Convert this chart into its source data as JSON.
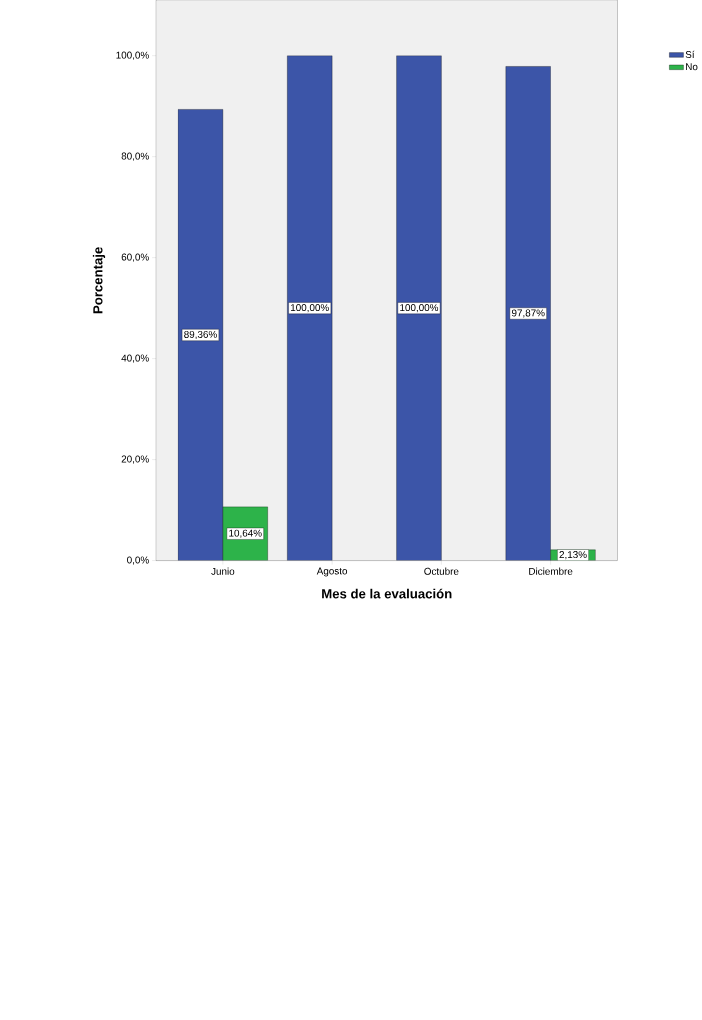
{
  "chart_data": {
    "type": "bar",
    "xlabel": "Mes de la evaluación",
    "ylabel": "Porcentaje",
    "categories": [
      "Junio",
      "Agosto",
      "Octubre",
      "Diciembre"
    ],
    "series": [
      {
        "name": "Sí",
        "color": "#3c55a8",
        "values": [
          89.36,
          100,
          100,
          97.87
        ],
        "value_labels": [
          "89,36%",
          "100,00%",
          "100,00%",
          "97,87%"
        ]
      },
      {
        "name": "No",
        "color": "#2db34a",
        "values": [
          10.64,
          null,
          null,
          2.13
        ],
        "value_labels": [
          "10,64%",
          null,
          null,
          "2,13%"
        ]
      }
    ],
    "ylim": [
      0,
      111
    ],
    "yticks": [
      {
        "value": 0,
        "label": "0,0%"
      },
      {
        "value": 20,
        "label": "20,0%"
      },
      {
        "value": 40,
        "label": "40,0%"
      },
      {
        "value": 60,
        "label": "60,0%"
      },
      {
        "value": 80,
        "label": "80,0%"
      },
      {
        "value": 100,
        "label": "100,0%"
      }
    ],
    "legend": "top right",
    "grid": false
  }
}
